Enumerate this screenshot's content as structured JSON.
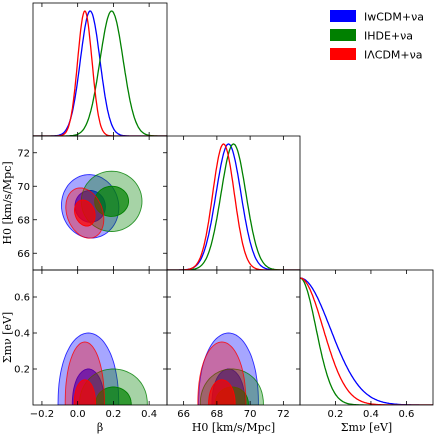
{
  "chart_data": {
    "type": "triangle-corner-plot",
    "parameters": [
      {
        "id": "beta",
        "label": "β",
        "range": [
          -0.25,
          0.5
        ],
        "ticks": [
          -0.2,
          0.0,
          0.2,
          0.4
        ],
        "tick_labels": [
          "−0.2",
          "0.0",
          "0.2",
          "0.4"
        ]
      },
      {
        "id": "H0",
        "label": "H0 [km/s/Mpc]",
        "range": [
          65,
          73
        ],
        "ticks": [
          66,
          68,
          70,
          72
        ],
        "tick_labels": [
          "66",
          "68",
          "70",
          "72"
        ]
      },
      {
        "id": "sum_mnu",
        "label": "Σmν [eV]",
        "range": [
          0,
          0.75
        ],
        "ticks": [
          0.2,
          0.4,
          0.6
        ],
        "tick_labels": [
          "0.2",
          "0.4",
          "0.6"
        ]
      }
    ],
    "y_axis_labels": {
      "H0": "H0 [km/s/Mpc]",
      "sum_mnu": "Σmν [eV]"
    },
    "series": [
      {
        "name": "IwCDM+νa",
        "color": "#0000ff",
        "marginals": {
          "beta": {
            "mean": 0.07,
            "sigma": 0.055
          },
          "H0": {
            "mean": 68.7,
            "sigma": 0.75
          },
          "sum_mnu": {
            "type": "halfnormal",
            "scale": 0.17
          }
        },
        "contours": {
          "H0_vs_beta": {
            "cx": 0.07,
            "cy": 68.8,
            "r68": [
              0.085,
              0.95
            ],
            "r95": [
              0.16,
              1.9
            ],
            "angle": -10
          },
          "mnu_vs_beta": {
            "cx": 0.06,
            "top68": 0.2,
            "top95": 0.4,
            "half68": 0.09,
            "half95": 0.17
          },
          "mnu_vs_H0": {
            "cx": 68.7,
            "top68": 0.2,
            "top95": 0.4,
            "half68": 1.0,
            "half95": 1.8
          }
        }
      },
      {
        "name": "IHDE+νa",
        "color": "#008000",
        "marginals": {
          "beta": {
            "mean": 0.19,
            "sigma": 0.065
          },
          "H0": {
            "mean": 69.0,
            "sigma": 0.75
          },
          "sum_mnu": {
            "type": "halfnormal",
            "scale": 0.09
          }
        },
        "contours": {
          "H0_vs_beta": {
            "cx": 0.19,
            "cy": 69.1,
            "r68": [
              0.095,
              0.9
            ],
            "r95": [
              0.17,
              1.8
            ],
            "angle": -5
          },
          "mnu_vs_beta": {
            "cx": 0.2,
            "top68": 0.1,
            "top95": 0.2,
            "half68": 0.1,
            "half95": 0.19
          },
          "mnu_vs_H0": {
            "cx": 68.9,
            "top68": 0.1,
            "top95": 0.2,
            "half68": 1.0,
            "half95": 1.9
          }
        }
      },
      {
        "name": "IΛCDM+νa",
        "color": "#ff0000",
        "marginals": {
          "beta": {
            "mean": 0.04,
            "sigma": 0.04
          },
          "H0": {
            "mean": 68.4,
            "sigma": 0.65
          },
          "sum_mnu": {
            "type": "halfnormal",
            "scale": 0.13
          }
        },
        "contours": {
          "H0_vs_beta": {
            "cx": 0.04,
            "cy": 68.4,
            "r68": [
              0.055,
              0.8
            ],
            "r95": [
              0.1,
              1.55
            ],
            "angle": -20
          },
          "mnu_vs_beta": {
            "cx": 0.04,
            "top68": 0.14,
            "top95": 0.35,
            "half68": 0.06,
            "half95": 0.11
          },
          "mnu_vs_H0": {
            "cx": 68.3,
            "top68": 0.14,
            "top95": 0.35,
            "half68": 0.8,
            "half95": 1.45
          }
        }
      }
    ],
    "legend_position": "top-right",
    "grid": false
  }
}
